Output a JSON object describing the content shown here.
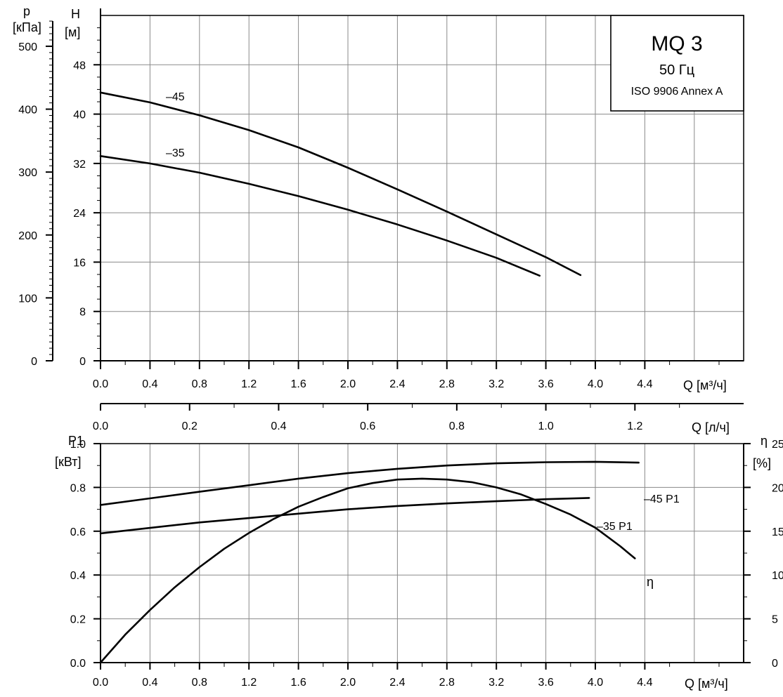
{
  "chart_data": [
    {
      "type": "line",
      "panel": "head",
      "title": "MQ 3",
      "subtitle": "50 Гц",
      "standard": "ISO 9906 Annex A",
      "xlabel": "Q [м³/ч]",
      "xlim": [
        0,
        5.2
      ],
      "x_ticks": [
        "0.0",
        "0.4",
        "0.8",
        "1.2",
        "1.6",
        "2.0",
        "2.4",
        "2.8",
        "3.2",
        "3.6",
        "4.0",
        "4.4"
      ],
      "ylabel": "H",
      "ylabel_unit": "[м]",
      "ylim": [
        0,
        56
      ],
      "y_ticks": [
        "0",
        "8",
        "16",
        "24",
        "32",
        "40",
        "48"
      ],
      "y2label": "p",
      "y2label_unit": "[кПа]",
      "y2lim": [
        0,
        549
      ],
      "y2_ticks": [
        "0",
        "100",
        "200",
        "300",
        "400",
        "500"
      ],
      "secondary_xlabel": "Q [л/ч]",
      "secondary_xlim": [
        0,
        1.444
      ],
      "secondary_x_ticks": [
        "0.0",
        "0.2",
        "0.4",
        "0.6",
        "0.8",
        "1.0",
        "1.2"
      ],
      "grid": true,
      "series": [
        {
          "name": "–45",
          "x": [
            0,
            0.4,
            0.8,
            1.2,
            1.6,
            2.0,
            2.4,
            2.8,
            3.2,
            3.6,
            3.88
          ],
          "y": [
            43.5,
            41.9,
            39.8,
            37.4,
            34.6,
            31.3,
            27.8,
            24.2,
            20.5,
            16.8,
            13.9
          ]
        },
        {
          "name": "–35",
          "x": [
            0,
            0.4,
            0.8,
            1.2,
            1.6,
            2.0,
            2.4,
            2.8,
            3.2,
            3.55
          ],
          "y": [
            33.2,
            32.0,
            30.5,
            28.7,
            26.7,
            24.5,
            22.1,
            19.5,
            16.7,
            13.8
          ]
        }
      ]
    },
    {
      "type": "line",
      "panel": "power",
      "xlabel": "Q [м³/ч]",
      "xlim": [
        0,
        5.2
      ],
      "x_ticks": [
        "0.0",
        "0.4",
        "0.8",
        "1.2",
        "1.6",
        "2.0",
        "2.4",
        "2.8",
        "3.2",
        "3.6",
        "4.0",
        "4.4"
      ],
      "ylabel": "P1",
      "ylabel_unit": "[кВт]",
      "ylim": [
        0,
        1.0
      ],
      "y_ticks": [
        "0.0",
        "0.2",
        "0.4",
        "0.6",
        "0.8",
        "1.0"
      ],
      "y2label": "η",
      "y2label_unit": "[%]",
      "y2lim": [
        0,
        25
      ],
      "y2_ticks": [
        "0",
        "5",
        "10",
        "15",
        "20",
        "25"
      ],
      "grid": true,
      "series": [
        {
          "name": "–45 P1",
          "axis": "left",
          "x": [
            0,
            0.4,
            0.8,
            1.2,
            1.6,
            2.0,
            2.4,
            2.8,
            3.2,
            3.6,
            4.0,
            4.35
          ],
          "y": [
            0.72,
            0.75,
            0.78,
            0.81,
            0.84,
            0.865,
            0.885,
            0.9,
            0.91,
            0.915,
            0.917,
            0.913
          ]
        },
        {
          "name": "–35 P1",
          "axis": "left",
          "x": [
            0,
            0.4,
            0.8,
            1.2,
            1.6,
            2.0,
            2.4,
            2.8,
            3.2,
            3.6,
            3.95
          ],
          "y": [
            0.59,
            0.615,
            0.64,
            0.66,
            0.68,
            0.7,
            0.715,
            0.727,
            0.737,
            0.746,
            0.752
          ]
        },
        {
          "name": "η",
          "axis": "right",
          "x": [
            0,
            0.2,
            0.4,
            0.6,
            0.8,
            1.0,
            1.2,
            1.4,
            1.6,
            1.8,
            2.0,
            2.2,
            2.4,
            2.6,
            2.8,
            3.0,
            3.2,
            3.4,
            3.6,
            3.8,
            4.0,
            4.2,
            4.32
          ],
          "y": [
            0,
            3.2,
            6.0,
            8.6,
            10.9,
            13.0,
            14.8,
            16.4,
            17.8,
            18.9,
            19.9,
            20.5,
            20.9,
            21.0,
            20.9,
            20.6,
            20.0,
            19.2,
            18.1,
            16.9,
            15.4,
            13.3,
            11.9
          ]
        }
      ]
    }
  ]
}
